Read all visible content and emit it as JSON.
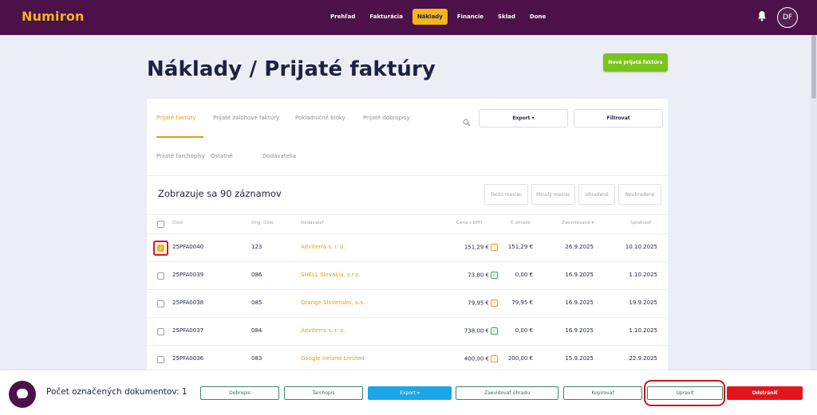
{
  "app": {
    "logo": "Numiron"
  },
  "nav": {
    "items": [
      {
        "label": "Prehľad",
        "active": false
      },
      {
        "label": "Fakturácia",
        "active": false
      },
      {
        "label": "Náklady",
        "active": true
      },
      {
        "label": "Financie",
        "active": false
      },
      {
        "label": "Sklad",
        "active": false
      },
      {
        "label": "Done",
        "active": false
      }
    ],
    "user_initials": "DF",
    "bell_icon": "bell-icon"
  },
  "page": {
    "title": "Náklady / Prijaté faktúry",
    "new_button": "Nová prijatá faktúra"
  },
  "tabs": [
    {
      "label": "Prijaté faktúry",
      "active": true
    },
    {
      "label": "Prijaté zálohové faktúry",
      "active": false
    },
    {
      "label": "Pokladničné bloky",
      "active": false
    },
    {
      "label": "Prijaté dobropisy",
      "active": false
    },
    {
      "label": "Prijaté ťarchopisy",
      "active": false
    },
    {
      "label": "Ostatné",
      "active": false
    },
    {
      "label": "Dodávatelia",
      "active": false
    }
  ],
  "toolbar": {
    "export_label": "Export ▾",
    "filter_label": "Filtrovať",
    "search_icon": "search-icon"
  },
  "records": {
    "title": "Zobrazuje sa 90 záznamov",
    "filters": [
      "Tento mesiac",
      "Minulý mesiac",
      "Uhradené",
      "Neuhradené"
    ]
  },
  "table": {
    "headers": {
      "number": "Číslo",
      "orig_number": "Orig. číslo",
      "supplier": "Dodávateľ",
      "price": "Cena s DPH",
      "to_pay": "K úhrade",
      "recorded": "Zaevidované",
      "due": "Splatnosť"
    },
    "rows": [
      {
        "number": "25PFA0040",
        "orig": "123",
        "supplier": "Adviterra s. r. o.",
        "price": "151,29 €",
        "status": "unpaid",
        "to_pay": "151,29 €",
        "recorded": "26.9.2025",
        "due": "10.10.2025",
        "checked": true
      },
      {
        "number": "25PFA0039",
        "orig": "086",
        "supplier": "SHELL Slovakia, s.r.o.",
        "price": "73,80 €",
        "status": "paid",
        "to_pay": "0,00 €",
        "recorded": "16.9.2025",
        "due": "1.10.2025",
        "checked": false
      },
      {
        "number": "25PFA0038",
        "orig": "085",
        "supplier": "Orange Slovensko, a.s.",
        "price": "79,95 €",
        "status": "unpaid",
        "to_pay": "79,95 €",
        "recorded": "16.9.2025",
        "due": "19.9.2025",
        "checked": false
      },
      {
        "number": "25PFA0037",
        "orig": "084",
        "supplier": "Adviterra s. r. o.",
        "price": "738,00 €",
        "status": "paid",
        "to_pay": "0,00 €",
        "recorded": "16.9.2025",
        "due": "1.10.2025",
        "checked": false
      },
      {
        "number": "25PFA0036",
        "orig": "083",
        "supplier": "Google Ireland Limited",
        "price": "400,00 €",
        "status": "partial",
        "to_pay": "200,00 €",
        "recorded": "15.9.2025",
        "due": "22.9.2025",
        "checked": false
      }
    ]
  },
  "bottom_bar": {
    "selected_label": "Počet označených dokumentov: 1",
    "buttons": {
      "credit_note": "Dobropis",
      "debit_note": "Ťarchopis",
      "export": "Export ▾",
      "record_payment": "Zaevidovať úhradu",
      "copy": "Kopírovať",
      "edit": "Upraviť",
      "delete": "Odstrániť"
    }
  },
  "colors": {
    "brand": "#4b1148",
    "accent": "#f2b51c",
    "green": "#79c51d",
    "blue": "#1aa6e8",
    "danger": "#e3161b"
  }
}
